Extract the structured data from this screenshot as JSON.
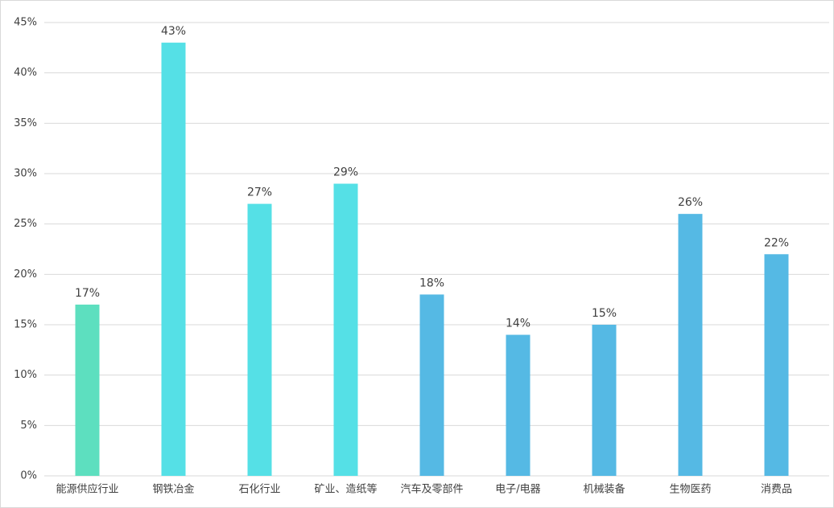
{
  "chart_data": {
    "type": "bar",
    "categories": [
      "能源供应行业",
      "钢铁冶金",
      "石化行业",
      "矿业、造纸等",
      "汽车及零部件",
      "电子/电器",
      "机械装备",
      "生物医药",
      "消费品"
    ],
    "values": [
      17,
      43,
      27,
      29,
      18,
      14,
      15,
      26,
      22
    ],
    "value_labels": [
      "17%",
      "43%",
      "27%",
      "29%",
      "18%",
      "14%",
      "15%",
      "26%",
      "22%"
    ],
    "colors": [
      "#5ddfbf",
      "#55e0e6",
      "#55e0e6",
      "#55e0e6",
      "#55b9e4",
      "#55b9e4",
      "#55b9e4",
      "#55b9e4",
      "#55b9e4"
    ],
    "ylim": [
      0,
      45
    ],
    "yticks": [
      {
        "value": 0,
        "label": "0%"
      },
      {
        "value": 5,
        "label": "5%"
      },
      {
        "value": 10,
        "label": "10%"
      },
      {
        "value": 15,
        "label": "15%"
      },
      {
        "value": 20,
        "label": "20%"
      },
      {
        "value": 25,
        "label": "25%"
      },
      {
        "value": 30,
        "label": "30%"
      },
      {
        "value": 35,
        "label": "35%"
      },
      {
        "value": 40,
        "label": "40%"
      },
      {
        "value": 45,
        "label": "45%"
      }
    ],
    "grid": true
  }
}
